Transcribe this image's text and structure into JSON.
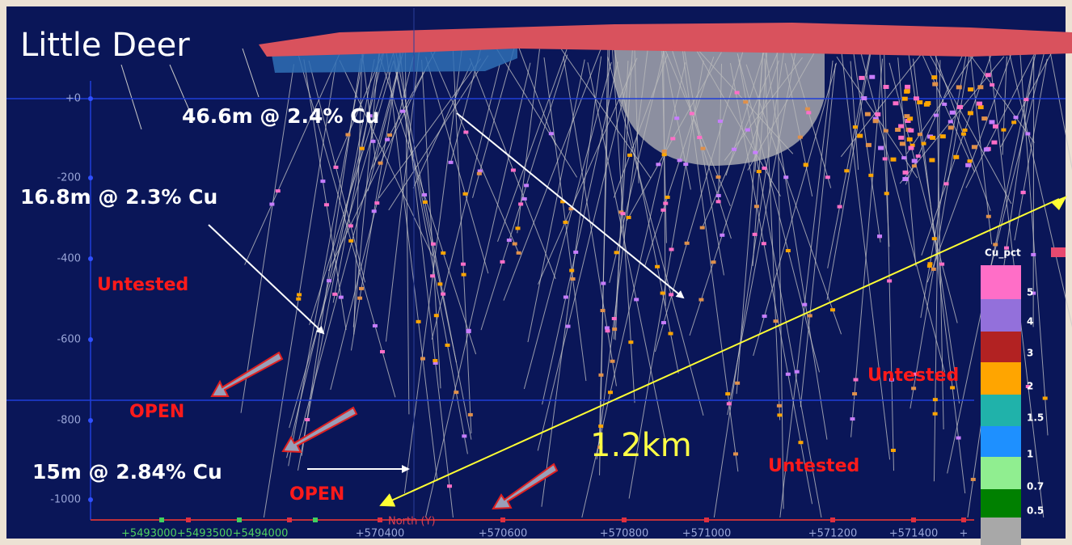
{
  "title": "Little Deer",
  "annotations": {
    "intercept_top": "46.6m @ 2.4% Cu",
    "intercept_left": "16.8m @ 2.3% Cu",
    "intercept_bottom": "15m @ 2.84% Cu",
    "untested": [
      "Untested",
      "Untested",
      "Untested"
    ],
    "open": [
      "OPEN",
      "OPEN"
    ],
    "distance": "1.2km"
  },
  "depth_labels": [
    "+0",
    "-200",
    "-400",
    "-600",
    "-800",
    "-1000"
  ],
  "easting_labels": [
    "+570400",
    "+570600",
    "+570800",
    "+571000",
    "+571200",
    "+571400",
    "+"
  ],
  "northing_labels": "+5493000+5493500+5494000",
  "axis_name": "North (Y)",
  "legend": {
    "title": "Cu_pct",
    "labels": [
      "5",
      "4",
      "3",
      "2",
      "1.5",
      "1",
      "0.7",
      "0.5"
    ]
  }
}
